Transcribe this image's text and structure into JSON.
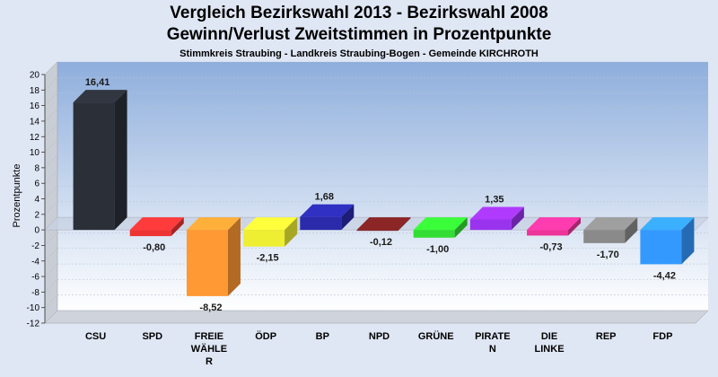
{
  "chart_data": {
    "type": "bar",
    "title": "Vergleich Bezirkswahl 2013 - Bezirkswahl 2008",
    "title2": "Gewinn/Verlust Zweitstimmen in Prozentpunkte",
    "subtitle": "Stimmkreis Straubing - Landkreis Straubing-Bogen - Gemeinde KIRCHROTH",
    "ylabel": "Prozentpunkte",
    "xlabel": "",
    "ylim": [
      -12,
      20
    ],
    "ytick_step": 2,
    "grid": true,
    "categories": [
      [
        "CSU"
      ],
      [
        "SPD"
      ],
      [
        "FREIE",
        "WÄHLE",
        "R"
      ],
      [
        "ÖDP"
      ],
      [
        "BP"
      ],
      [
        "NPD"
      ],
      [
        "GRÜNE"
      ],
      [
        "PIRATE",
        "N"
      ],
      [
        "DIE",
        "LINKE"
      ],
      [
        "REP"
      ],
      [
        "FDP"
      ]
    ],
    "values": [
      16.41,
      -0.8,
      -8.52,
      -2.15,
      1.68,
      -0.12,
      -1.0,
      1.35,
      -0.73,
      -1.7,
      -4.42
    ],
    "value_labels": [
      "16,41",
      "-0,80",
      "-8,52",
      "-2,15",
      "1,68",
      "-0,12",
      "-1,00",
      "1,35",
      "-0,73",
      "-1,70",
      "-4,42"
    ],
    "colors": [
      "#2b2f38",
      "#ee3333",
      "#ff9933",
      "#eeee33",
      "#2a2aaa",
      "#7a2020",
      "#33dd33",
      "#9933ee",
      "#ee3399",
      "#8a8a8a",
      "#3399ff"
    ]
  }
}
